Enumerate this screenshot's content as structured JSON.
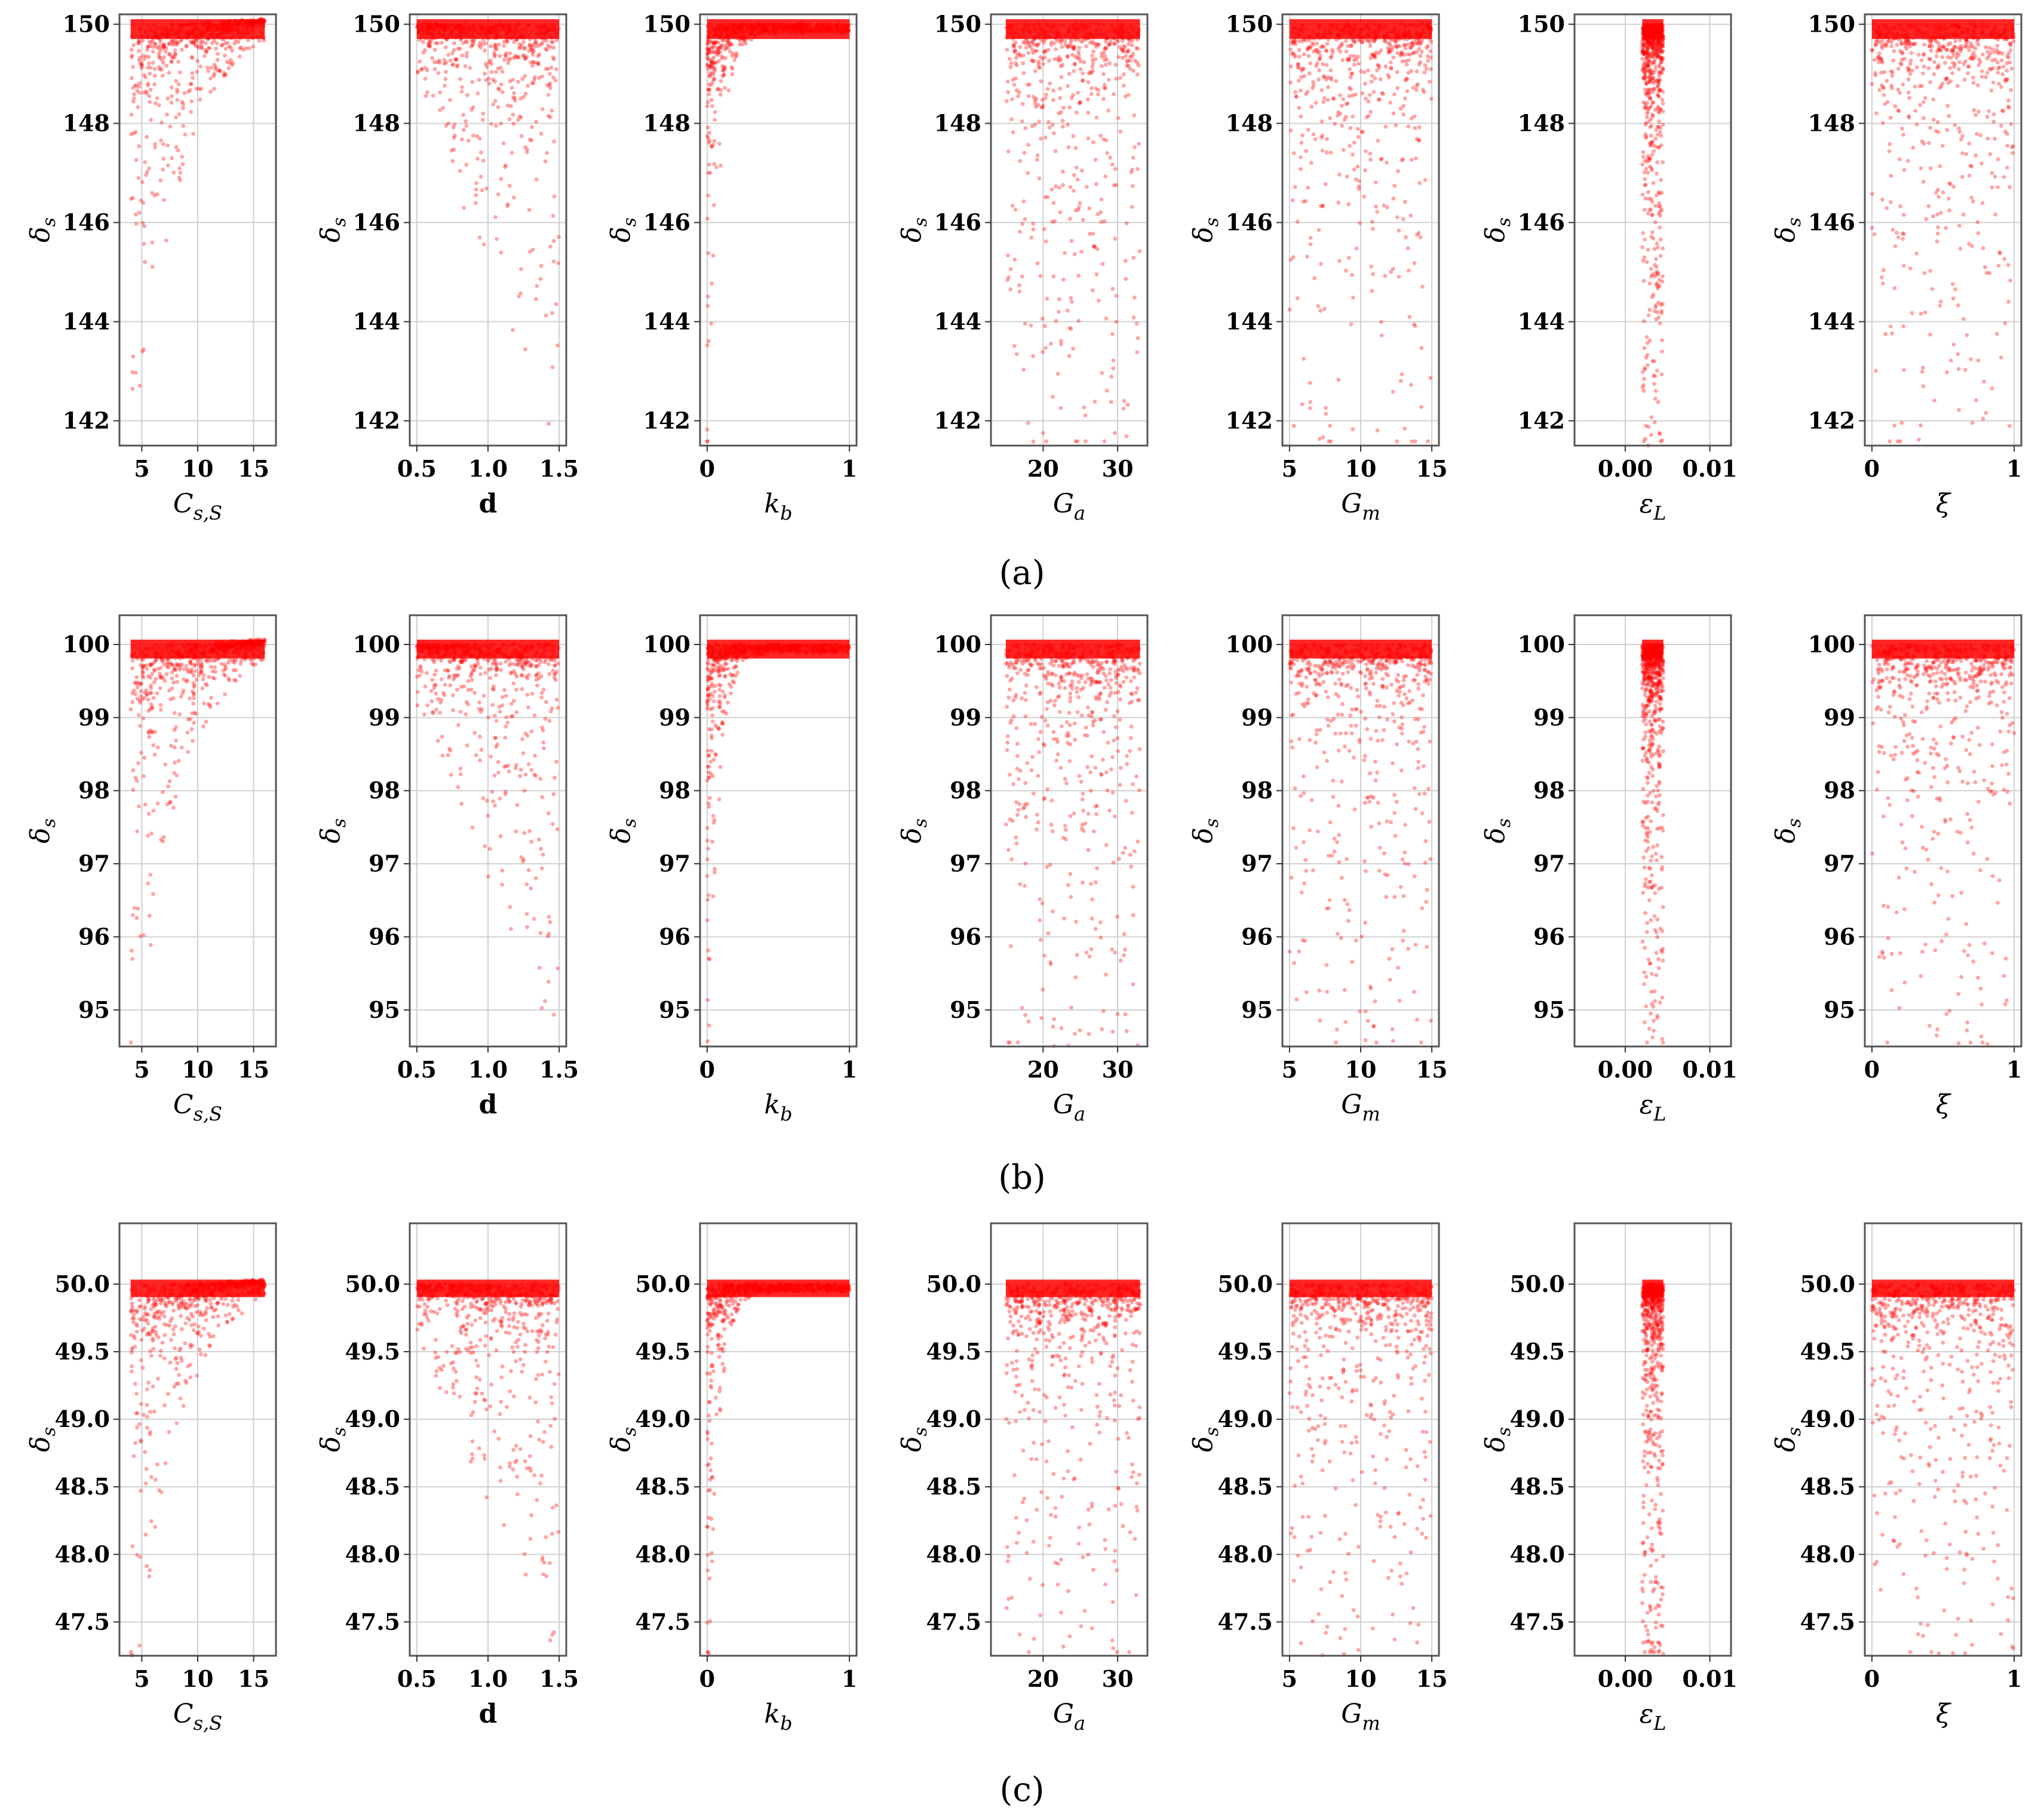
{
  "figure": {
    "panel_labels": [
      "(a)",
      "(b)",
      "(c)"
    ],
    "y_label": "δs",
    "marker_color": "#ff0000"
  },
  "chart_data": [
    {
      "panel": "(a)",
      "type": "scatter",
      "ylim": [
        141.5,
        150.2
      ],
      "yticks": [
        142,
        144,
        146,
        148,
        150
      ],
      "y_label": "δs",
      "target": 150,
      "subplots": [
        {
          "param": "Cs_S",
          "xlabel": "C_{s,S}",
          "xlim": [
            3,
            17
          ],
          "xticks": [
            5,
            10,
            15
          ],
          "tick_labels": [
            "5",
            "10",
            "15"
          ],
          "shape": "cs",
          "xr": [
            4,
            16
          ]
        },
        {
          "param": "d",
          "xlabel": "d",
          "xlim": [
            0.45,
            1.55
          ],
          "xticks": [
            0.5,
            1.0,
            1.5
          ],
          "tick_labels": [
            "0.5",
            "1.0",
            "1.5"
          ],
          "shape": "inc",
          "xr": [
            0.5,
            1.5
          ]
        },
        {
          "param": "k_b",
          "xlabel": "k_b",
          "xlim": [
            -0.05,
            1.05
          ],
          "xticks": [
            0,
            1
          ],
          "tick_labels": [
            "0",
            "1"
          ],
          "shape": "kb",
          "xr": [
            0,
            1
          ]
        },
        {
          "param": "G_a",
          "xlabel": "G_a",
          "xlim": [
            13,
            34
          ],
          "xticks": [
            20,
            30
          ],
          "tick_labels": [
            "20",
            "30"
          ],
          "shape": "flat",
          "xr": [
            15,
            33
          ]
        },
        {
          "param": "G_m",
          "xlabel": "G_m",
          "xlim": [
            4.5,
            15.5
          ],
          "xticks": [
            5,
            10,
            15
          ],
          "tick_labels": [
            "5",
            "10",
            "15"
          ],
          "shape": "flat",
          "xr": [
            5,
            15
          ]
        },
        {
          "param": "eps_L",
          "xlabel": "ε_L",
          "xlim": [
            -0.006,
            0.0125
          ],
          "xticks": [
            0.0,
            0.01
          ],
          "tick_labels": [
            "0.00",
            "0.01"
          ],
          "shape": "eps",
          "xr": [
            0.002,
            0.0045
          ]
        },
        {
          "param": "xi",
          "xlabel": "ξ",
          "xlim": [
            -0.05,
            1.05
          ],
          "xticks": [
            0,
            1
          ],
          "tick_labels": [
            "0",
            "1"
          ],
          "shape": "xi",
          "xr": [
            0,
            1
          ]
        }
      ]
    },
    {
      "panel": "(b)",
      "type": "scatter",
      "ylim": [
        94.5,
        100.4
      ],
      "yticks": [
        95,
        96,
        97,
        98,
        99,
        100
      ],
      "y_label": "δs",
      "target": 100,
      "subplots": [
        {
          "param": "Cs_S",
          "xlabel": "C_{s,S}",
          "xlim": [
            3,
            17
          ],
          "xticks": [
            5,
            10,
            15
          ],
          "tick_labels": [
            "5",
            "10",
            "15"
          ],
          "shape": "cs",
          "xr": [
            4,
            16
          ]
        },
        {
          "param": "d",
          "xlabel": "d",
          "xlim": [
            0.45,
            1.55
          ],
          "xticks": [
            0.5,
            1.0,
            1.5
          ],
          "tick_labels": [
            "0.5",
            "1.0",
            "1.5"
          ],
          "shape": "inc",
          "xr": [
            0.5,
            1.5
          ]
        },
        {
          "param": "k_b",
          "xlabel": "k_b",
          "xlim": [
            -0.05,
            1.05
          ],
          "xticks": [
            0,
            1
          ],
          "tick_labels": [
            "0",
            "1"
          ],
          "shape": "kb",
          "xr": [
            0,
            1
          ]
        },
        {
          "param": "G_a",
          "xlabel": "G_a",
          "xlim": [
            13,
            34
          ],
          "xticks": [
            20,
            30
          ],
          "tick_labels": [
            "20",
            "30"
          ],
          "shape": "flat",
          "xr": [
            15,
            33
          ]
        },
        {
          "param": "G_m",
          "xlabel": "G_m",
          "xlim": [
            4.5,
            15.5
          ],
          "xticks": [
            5,
            10,
            15
          ],
          "tick_labels": [
            "5",
            "10",
            "15"
          ],
          "shape": "flat",
          "xr": [
            5,
            15
          ]
        },
        {
          "param": "eps_L",
          "xlabel": "ε_L",
          "xlim": [
            -0.006,
            0.0125
          ],
          "xticks": [
            0.0,
            0.01
          ],
          "tick_labels": [
            "0.00",
            "0.01"
          ],
          "shape": "eps",
          "xr": [
            0.002,
            0.0045
          ]
        },
        {
          "param": "xi",
          "xlabel": "ξ",
          "xlim": [
            -0.05,
            1.05
          ],
          "xticks": [
            0,
            1
          ],
          "tick_labels": [
            "0",
            "1"
          ],
          "shape": "xi",
          "xr": [
            0,
            1
          ]
        }
      ]
    },
    {
      "panel": "(c)",
      "type": "scatter",
      "ylim": [
        47.25,
        50.45
      ],
      "yticks": [
        47.5,
        48.0,
        48.5,
        49.0,
        49.5,
        50.0
      ],
      "y_label": "δs",
      "target": 50,
      "subplots": [
        {
          "param": "Cs_S",
          "xlabel": "C_{s,S}",
          "xlim": [
            3,
            17
          ],
          "xticks": [
            5,
            10,
            15
          ],
          "tick_labels": [
            "5",
            "10",
            "15"
          ],
          "shape": "cs",
          "xr": [
            4,
            16
          ]
        },
        {
          "param": "d",
          "xlabel": "d",
          "xlim": [
            0.45,
            1.55
          ],
          "xticks": [
            0.5,
            1.0,
            1.5
          ],
          "tick_labels": [
            "0.5",
            "1.0",
            "1.5"
          ],
          "shape": "inc",
          "xr": [
            0.5,
            1.5
          ]
        },
        {
          "param": "k_b",
          "xlabel": "k_b",
          "xlim": [
            -0.05,
            1.05
          ],
          "xticks": [
            0,
            1
          ],
          "tick_labels": [
            "0",
            "1"
          ],
          "shape": "kb",
          "xr": [
            0,
            1
          ]
        },
        {
          "param": "G_a",
          "xlabel": "G_a",
          "xlim": [
            13,
            34
          ],
          "xticks": [
            20,
            30
          ],
          "tick_labels": [
            "20",
            "30"
          ],
          "shape": "flat",
          "xr": [
            15,
            33
          ]
        },
        {
          "param": "G_m",
          "xlabel": "G_m",
          "xlim": [
            4.5,
            15.5
          ],
          "xticks": [
            5,
            10,
            15
          ],
          "tick_labels": [
            "5",
            "10",
            "15"
          ],
          "shape": "flat",
          "xr": [
            5,
            15
          ]
        },
        {
          "param": "eps_L",
          "xlabel": "ε_L",
          "xlim": [
            -0.006,
            0.0125
          ],
          "xticks": [
            0.0,
            0.01
          ],
          "tick_labels": [
            "0.00",
            "0.01"
          ],
          "shape": "eps",
          "xr": [
            0.002,
            0.0045
          ]
        },
        {
          "param": "xi",
          "xlabel": "ξ",
          "xlim": [
            -0.05,
            1.05
          ],
          "xticks": [
            0,
            1
          ],
          "tick_labels": [
            "0",
            "1"
          ],
          "shape": "xi",
          "xr": [
            0,
            1
          ]
        }
      ]
    }
  ]
}
